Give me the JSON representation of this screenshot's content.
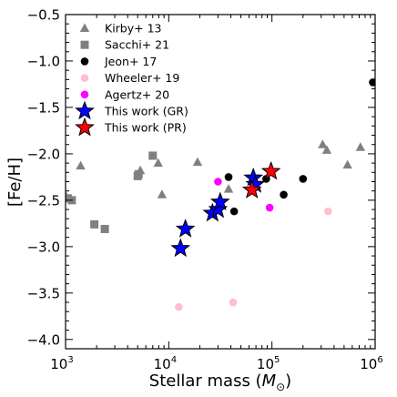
{
  "chart_data": {
    "type": "scatter",
    "xlabel_main": "Stellar mass (",
    "xlabel_math": "M",
    "xlabel_sub": "⊙",
    "xlabel_close": ")",
    "ylabel": "[Fe/H]",
    "xscale": "log",
    "xlim": [
      1000,
      1000000
    ],
    "ylim": [
      -4.1,
      -0.5
    ],
    "x_ticks": [
      {
        "base": "10",
        "exp": "3",
        "value": 1000
      },
      {
        "base": "10",
        "exp": "4",
        "value": 10000
      },
      {
        "base": "10",
        "exp": "5",
        "value": 100000
      },
      {
        "base": "10",
        "exp": "6",
        "value": 1000000
      }
    ],
    "y_ticks": [
      {
        "label": "−0.5",
        "value": -0.5
      },
      {
        "label": "−1.0",
        "value": -1.0
      },
      {
        "label": "−1.5",
        "value": -1.5
      },
      {
        "label": "−2.0",
        "value": -2.0
      },
      {
        "label": "−2.5",
        "value": -2.5
      },
      {
        "label": "−3.0",
        "value": -3.0
      },
      {
        "label": "−3.5",
        "value": -3.5
      },
      {
        "label": "−4.0",
        "value": -4.0
      }
    ],
    "legend_position": "top-left",
    "series": [
      {
        "name": "Kirby+ 13",
        "marker": "triangle",
        "color": "#808080",
        "points": [
          [
            1000,
            -2.45
          ],
          [
            1400,
            -2.13
          ],
          [
            5300,
            -2.18
          ],
          [
            7900,
            -2.1
          ],
          [
            8600,
            -2.44
          ],
          [
            19000,
            -2.09
          ],
          [
            38000,
            -2.38
          ],
          [
            310000,
            -1.9
          ],
          [
            340000,
            -1.96
          ],
          [
            540000,
            -2.12
          ],
          [
            720000,
            -1.93
          ]
        ]
      },
      {
        "name": "Sacchi+ 21",
        "marker": "square",
        "color": "#808080",
        "points": [
          [
            1050,
            -2.48
          ],
          [
            1150,
            -2.5
          ],
          [
            1900,
            -2.76
          ],
          [
            2400,
            -2.81
          ],
          [
            5000,
            -2.24
          ],
          [
            5100,
            -2.22
          ],
          [
            7000,
            -2.02
          ]
        ]
      },
      {
        "name": "Jeon+ 17",
        "marker": "circle",
        "color": "#000000",
        "points": [
          [
            38000,
            -2.25
          ],
          [
            43000,
            -2.62
          ],
          [
            88000,
            -2.27
          ],
          [
            130000,
            -2.44
          ],
          [
            200000,
            -2.27
          ],
          [
            950000,
            -1.23
          ]
        ]
      },
      {
        "name": "Wheeler+ 19",
        "marker": "circle",
        "color": "#ffc0cb",
        "points": [
          [
            12500,
            -3.65
          ],
          [
            42000,
            -3.6
          ],
          [
            350000,
            -2.62
          ]
        ]
      },
      {
        "name": "Agertz+ 20",
        "marker": "circle",
        "color": "#ff00ff",
        "points": [
          [
            30000,
            -2.3
          ],
          [
            95000,
            -2.58
          ]
        ]
      },
      {
        "name": "This work (GR)",
        "marker": "star",
        "color": "#0000ff",
        "points": [
          [
            13000,
            -3.02
          ],
          [
            14500,
            -2.81
          ],
          [
            26500,
            -2.64
          ],
          [
            30000,
            -2.6
          ],
          [
            31500,
            -2.52
          ],
          [
            66000,
            -2.26
          ],
          [
            69000,
            -2.33
          ]
        ]
      },
      {
        "name": "This work (PR)",
        "marker": "star",
        "color": "#ff0000",
        "points": [
          [
            64000,
            -2.39
          ],
          [
            98000,
            -2.19
          ]
        ]
      }
    ]
  }
}
